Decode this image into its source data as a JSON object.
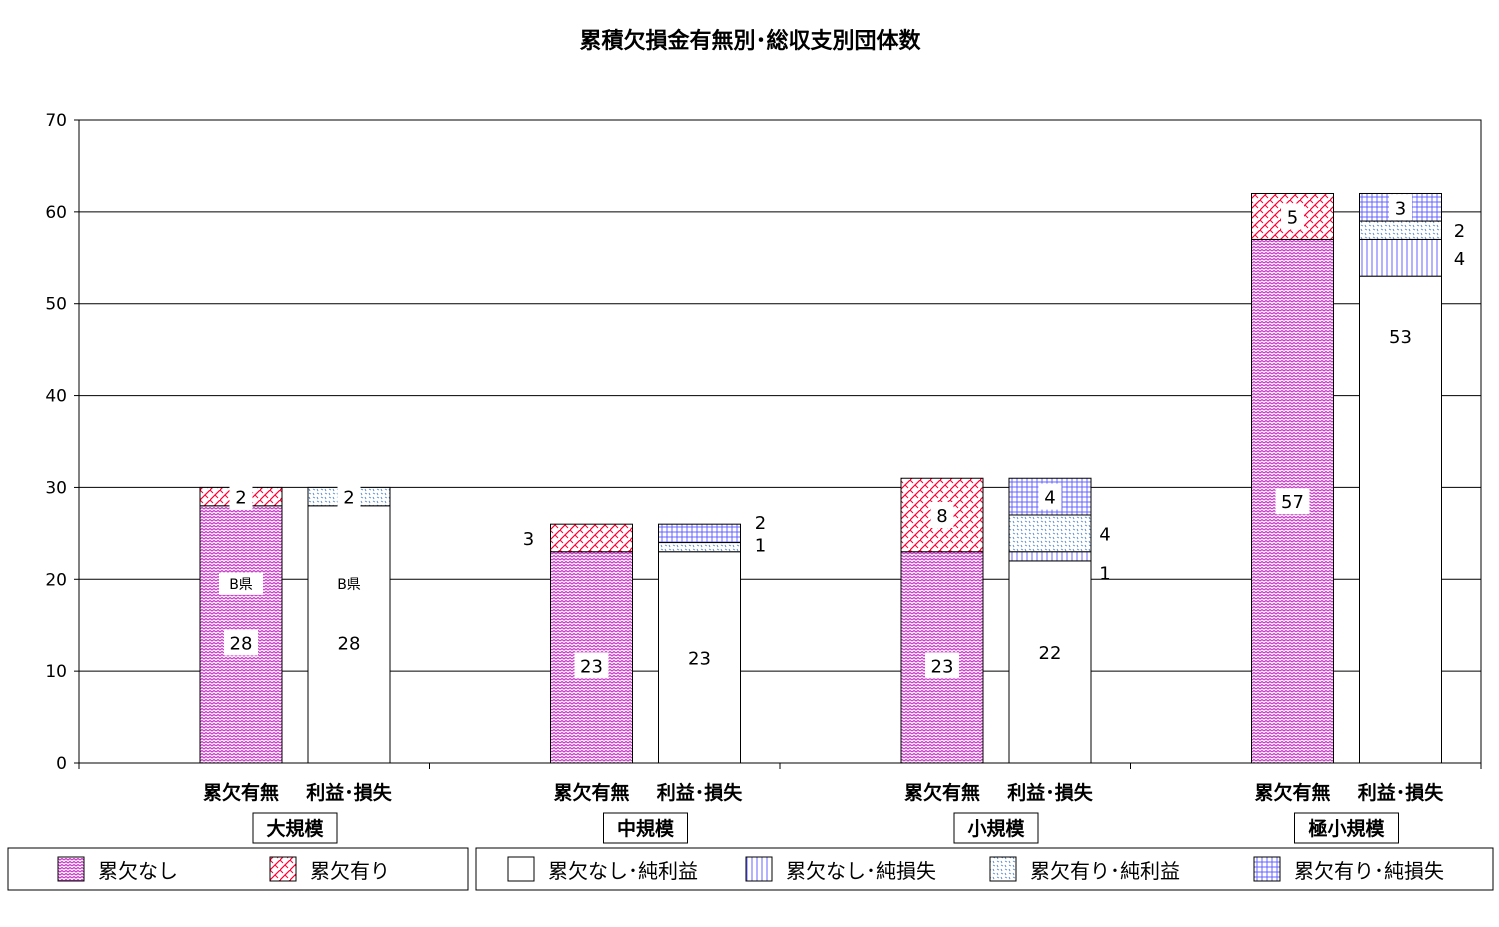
{
  "chart_data": {
    "type": "bar",
    "stacked": true,
    "title": "累積欠損金有無別･総収支別団体数",
    "ylim": [
      0,
      70
    ],
    "yticks": [
      0,
      10,
      20,
      30,
      40,
      50,
      60,
      70
    ],
    "grid": true,
    "legend_position": "bottom",
    "groups": [
      "大規模",
      "中規模",
      "小規模",
      "極小規模"
    ],
    "bar_labels": [
      "累欠有無",
      "利益･損失"
    ],
    "series_a": [
      {
        "name": "累欠なし",
        "pattern": "wave",
        "color": "#cc33cc",
        "values": [
          28,
          23,
          23,
          57
        ]
      },
      {
        "name": "累欠有り",
        "pattern": "hatch",
        "color": "#ff0033",
        "values": [
          2,
          3,
          8,
          5
        ]
      }
    ],
    "series_b": [
      {
        "name": "累欠なし･純利益",
        "pattern": "none",
        "color": "#ffffff",
        "values": [
          28,
          23,
          22,
          53
        ]
      },
      {
        "name": "累欠なし･純損失",
        "pattern": "vlines",
        "color": "#6666ff",
        "values": [
          0,
          0,
          1,
          4
        ]
      },
      {
        "name": "累欠有り･純利益",
        "pattern": "dots",
        "color": "#5588cc",
        "values": [
          2,
          1,
          4,
          2
        ]
      },
      {
        "name": "累欠有り･純損失",
        "pattern": "grid",
        "color": "#6666ff",
        "values": [
          0,
          2,
          4,
          3
        ]
      }
    ],
    "annotations": [
      "B県",
      "B県"
    ]
  }
}
